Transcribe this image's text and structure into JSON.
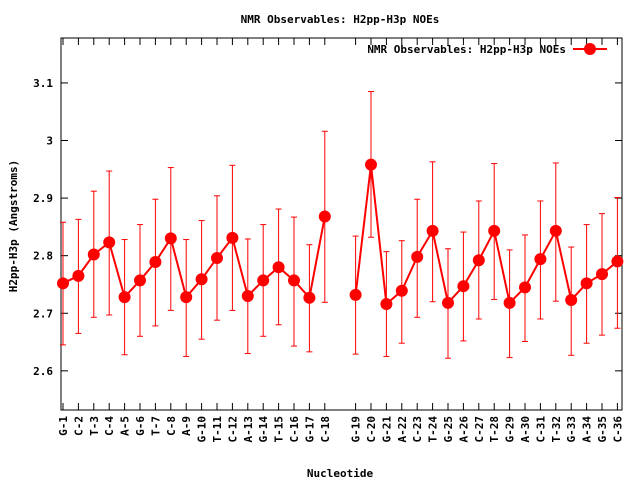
{
  "chart_data": {
    "type": "line",
    "title": "NMR Observables: H2pp-H3p NOEs",
    "xlabel": "Nucleotide",
    "ylabel": "H2pp-H3p (Angstroms)",
    "ylim": [
      2.532,
      3.178
    ],
    "xlim": [
      1,
      37.3
    ],
    "yticks": [
      2.6,
      2.7,
      2.8,
      2.9,
      3.0,
      3.1
    ],
    "ytick_labels": [
      "2.6",
      "2.7",
      "2.8",
      "2.9",
      "3",
      "3.1"
    ],
    "grid": false,
    "legend_position": "top-right",
    "color": "#ff0000",
    "categories": [
      "G-1",
      "C-2",
      "T-3",
      "C-4",
      "A-5",
      "G-6",
      "T-7",
      "C-8",
      "A-9",
      "G-10",
      "T-11",
      "C-12",
      "A-13",
      "G-14",
      "T-15",
      "C-16",
      "G-17",
      "C-18",
      "G-19",
      "C-20",
      "G-21",
      "A-22",
      "C-23",
      "T-24",
      "G-25",
      "A-26",
      "C-27",
      "T-28",
      "G-29",
      "A-30",
      "C-31",
      "T-32",
      "G-33",
      "A-34",
      "G-35",
      "C-36"
    ],
    "x": [
      1,
      2,
      3,
      4,
      5,
      6,
      7,
      8,
      9,
      10,
      11,
      12,
      13,
      14,
      15,
      16,
      17,
      18,
      20,
      21,
      22,
      23,
      24,
      25,
      26,
      27,
      28,
      29,
      30,
      31,
      32,
      33,
      34,
      35,
      36,
      37
    ],
    "series": [
      {
        "name": "NMR Observables: H2pp-H3p NOEs",
        "segments": [
          [
            0,
            17
          ],
          [
            18,
            35
          ]
        ],
        "values": [
          2.752,
          2.765,
          2.802,
          2.823,
          2.728,
          2.757,
          2.789,
          2.83,
          2.728,
          2.759,
          2.796,
          2.831,
          2.73,
          2.757,
          2.78,
          2.757,
          2.727,
          2.868,
          2.732,
          2.958,
          2.716,
          2.739,
          2.798,
          2.843,
          2.718,
          2.747,
          2.792,
          2.843,
          2.718,
          2.745,
          2.794,
          2.843,
          2.723,
          2.752,
          2.768,
          2.79
        ],
        "err_low": [
          2.645,
          2.665,
          2.693,
          2.697,
          2.628,
          2.66,
          2.678,
          2.705,
          2.625,
          2.655,
          2.688,
          2.705,
          2.63,
          2.66,
          2.68,
          2.643,
          2.633,
          2.719,
          2.629,
          2.832,
          2.625,
          2.648,
          2.693,
          2.72,
          2.622,
          2.652,
          2.69,
          2.724,
          2.623,
          2.651,
          2.69,
          2.721,
          2.627,
          2.648,
          2.662,
          2.674
        ],
        "err_high": [
          2.858,
          2.863,
          2.912,
          2.947,
          2.828,
          2.854,
          2.898,
          2.953,
          2.828,
          2.861,
          2.904,
          2.957,
          2.829,
          2.854,
          2.881,
          2.867,
          2.819,
          3.016,
          2.834,
          3.085,
          2.807,
          2.826,
          2.898,
          2.963,
          2.812,
          2.841,
          2.895,
          2.96,
          2.81,
          2.836,
          2.895,
          2.961,
          2.815,
          2.854,
          2.873,
          2.901
        ]
      }
    ]
  }
}
